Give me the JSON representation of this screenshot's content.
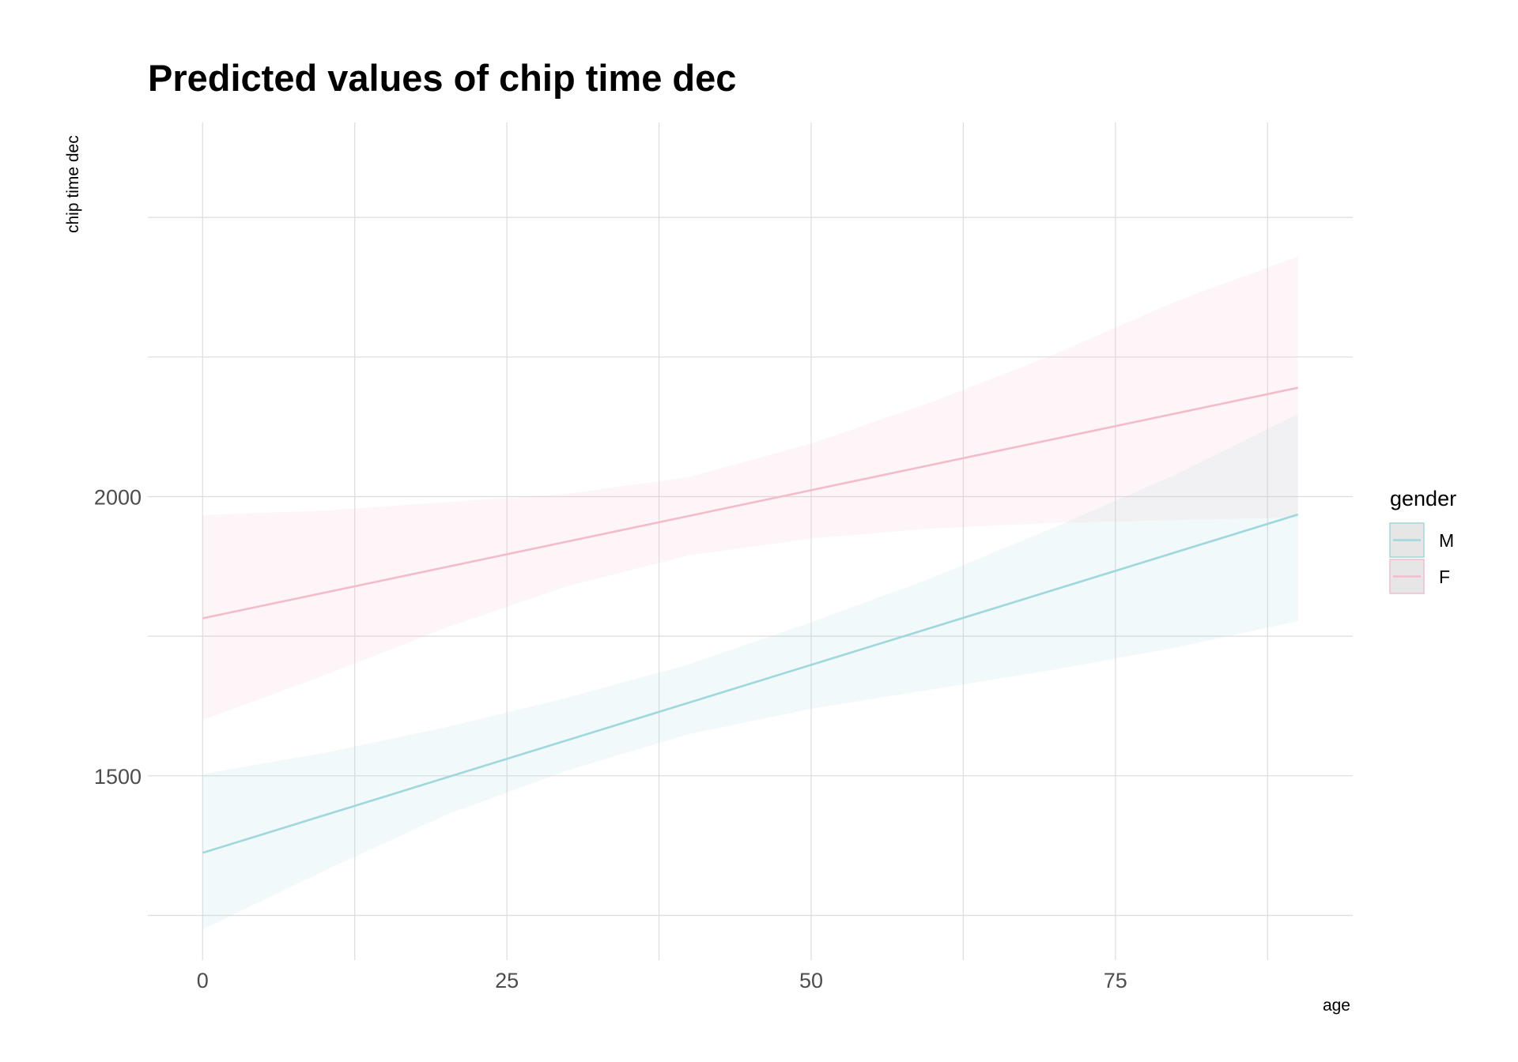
{
  "chart_data": {
    "type": "line",
    "title": "Predicted values of chip time dec",
    "xlabel": "age",
    "ylabel": "chip time dec",
    "x_ticks": [
      0,
      25,
      50,
      75
    ],
    "y_ticks": [
      1500,
      2000
    ],
    "xlim": [
      -4.5,
      94.5
    ],
    "ylim": [
      1170,
      2670
    ],
    "grid": true,
    "legend": {
      "title": "gender",
      "position": "right"
    },
    "series": [
      {
        "name": "M",
        "color": "#9ed8dc",
        "x": [
          0,
          90
        ],
        "y": [
          1362,
          1968
        ],
        "ci_x": [
          0,
          10,
          20,
          30,
          40,
          50,
          60,
          70,
          80,
          90
        ],
        "ci_low": [
          1225,
          1330,
          1430,
          1510,
          1575,
          1620,
          1655,
          1690,
          1730,
          1777
        ],
        "ci_high": [
          1503,
          1541,
          1587,
          1640,
          1700,
          1775,
          1855,
          1945,
          2040,
          2148
        ]
      },
      {
        "name": "F",
        "color": "#f4bccb",
        "x": [
          0,
          90
        ],
        "y": [
          1782,
          2195
        ],
        "ci_x": [
          0,
          10,
          20,
          30,
          40,
          50,
          60,
          70,
          80,
          90
        ],
        "ci_low": [
          1600,
          1680,
          1765,
          1840,
          1895,
          1925,
          1943,
          1953,
          1958,
          1963
        ],
        "ci_high": [
          1967,
          1975,
          1990,
          2005,
          2035,
          2095,
          2170,
          2255,
          2350,
          2430
        ]
      }
    ]
  }
}
